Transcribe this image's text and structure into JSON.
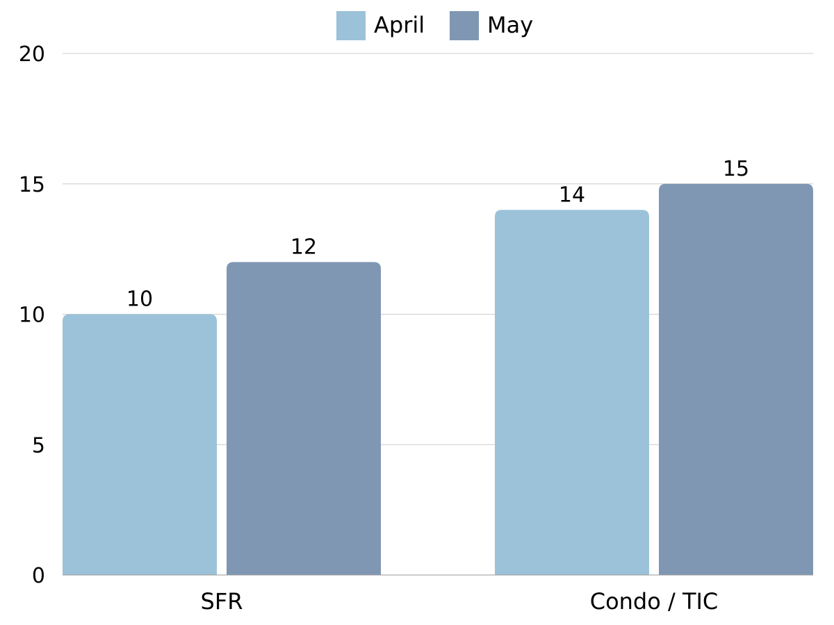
{
  "chart_data": {
    "type": "bar",
    "categories": [
      "SFR",
      "Condo / TIC"
    ],
    "series": [
      {
        "name": "April",
        "values": [
          10,
          14
        ],
        "color": "#9bc2d8"
      },
      {
        "name": "May",
        "values": [
          12,
          15
        ],
        "color": "#7f97b3"
      }
    ],
    "title": "",
    "xlabel": "",
    "ylabel": "",
    "ylim": [
      0,
      20
    ],
    "yticks": [
      "0",
      "5",
      "10",
      "15",
      "20"
    ],
    "grid": true,
    "legend_position": "top-center",
    "data_labels": true
  }
}
